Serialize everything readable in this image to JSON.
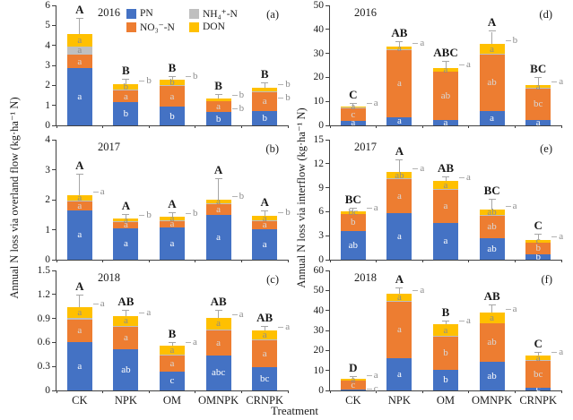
{
  "figure": {
    "x_title": "Treatment",
    "left_ylabel": "Annual N loss via overland flow (kg·ha⁻¹ N)",
    "right_ylabel": "Annual N loss via interflow (kg·ha⁻¹ N)",
    "categories": [
      "CK",
      "NPK",
      "OM",
      "OMNPK",
      "CRNPK"
    ],
    "colors": {
      "pn": "#4472C4",
      "no3": "#ED7D31",
      "nh4": "#BFBFBF",
      "don": "#FFC000"
    },
    "label_colors": {
      "pn": "#ffffff",
      "no3": "#d9d9d9",
      "nh4": "#8c8c8c",
      "don": "#8c8c8c"
    },
    "legend": [
      {
        "key": "pn",
        "label": "PN",
        "color": "#4472C4"
      },
      {
        "key": "nh4",
        "label": "NH₄⁺-N",
        "color": "#BFBFBF"
      },
      {
        "key": "no3",
        "label": "NO₃⁻-N",
        "color": "#ED7D31"
      },
      {
        "key": "don",
        "label": "DON",
        "color": "#FFC000"
      }
    ]
  },
  "chart_data": [
    {
      "type": "bar",
      "stacked": true,
      "id": "a",
      "panel_label": "(a)",
      "year": "2016",
      "side": "overland flow",
      "ylim": [
        0,
        6
      ],
      "ytick_labels": [
        "0",
        "1",
        "2",
        "3",
        "4",
        "5",
        "6"
      ],
      "bars": [
        {
          "treatment": "CK",
          "pn": 2.85,
          "no3": 0.7,
          "nh4": 0.4,
          "don": 0.6,
          "error": 0.8,
          "sig": "A",
          "pn_label": "a",
          "no3_label": "a",
          "nh4_label": "a",
          "don_label": "a",
          "callouts": []
        },
        {
          "treatment": "NPK",
          "pn": 1.15,
          "no3": 0.6,
          "nh4": 0.04,
          "don": 0.26,
          "error": 0.25,
          "sig": "B",
          "pn_label": "b",
          "no3_label": "a",
          "nh4_label": "",
          "don_label": "b",
          "callouts": [
            "b"
          ]
        },
        {
          "treatment": "OM",
          "pn": 0.92,
          "no3": 1.05,
          "nh4": 0.04,
          "don": 0.27,
          "error": 0.14,
          "sig": "B",
          "pn_label": "b",
          "no3_label": "a",
          "nh4_label": "",
          "don_label": "b",
          "callouts": [
            "b"
          ]
        },
        {
          "treatment": "OMNPK",
          "pn": 0.66,
          "no3": 0.54,
          "nh4": 0.03,
          "don": 0.13,
          "error": 0.15,
          "sig": "B",
          "pn_label": "b",
          "no3_label": "a",
          "nh4_label": "",
          "don_label": "",
          "callouts": [
            "b",
            "b"
          ]
        },
        {
          "treatment": "CRNPK",
          "pn": 0.72,
          "no3": 0.95,
          "nh4": 0.03,
          "don": 0.2,
          "error": 0.2,
          "sig": "B",
          "pn_label": "b",
          "no3_label": "a",
          "nh4_label": "",
          "don_label": "",
          "callouts": [
            "b",
            "b"
          ]
        }
      ]
    },
    {
      "type": "bar",
      "stacked": true,
      "id": "b",
      "panel_label": "(b)",
      "year": "2017",
      "side": "overland flow",
      "ylim": [
        0,
        4
      ],
      "ytick_labels": [
        "0",
        "1",
        "2",
        "3",
        "4"
      ],
      "bars": [
        {
          "treatment": "CK",
          "pn": 1.65,
          "no3": 0.3,
          "nh4": 0.03,
          "don": 0.17,
          "error": 0.7,
          "sig": "A",
          "pn_label": "a",
          "no3_label": "a",
          "nh4_label": "",
          "don_label": "a",
          "callouts": [
            "a"
          ]
        },
        {
          "treatment": "NPK",
          "pn": 1.05,
          "no3": 0.2,
          "nh4": 0.02,
          "don": 0.11,
          "error": 0.12,
          "sig": "A",
          "pn_label": "a",
          "no3_label": "a",
          "nh4_label": "",
          "don_label": "a",
          "callouts": [
            "b"
          ]
        },
        {
          "treatment": "OM",
          "pn": 1.08,
          "no3": 0.22,
          "nh4": 0.02,
          "don": 0.11,
          "error": 0.12,
          "sig": "A",
          "pn_label": "a",
          "no3_label": "a",
          "nh4_label": "",
          "don_label": "a",
          "callouts": [
            "b"
          ]
        },
        {
          "treatment": "OMNPK",
          "pn": 1.5,
          "no3": 0.35,
          "nh4": 0.02,
          "don": 0.13,
          "error": 0.7,
          "sig": "A",
          "pn_label": "a",
          "no3_label": "a",
          "nh4_label": "",
          "don_label": "a",
          "callouts": [
            "b"
          ]
        },
        {
          "treatment": "CRNPK",
          "pn": 1.02,
          "no3": 0.28,
          "nh4": 0.02,
          "don": 0.13,
          "error": 0.15,
          "sig": "A",
          "pn_label": "a",
          "no3_label": "a",
          "nh4_label": "",
          "don_label": "a",
          "callouts": [
            "b"
          ]
        }
      ]
    },
    {
      "type": "bar",
      "stacked": true,
      "id": "c",
      "panel_label": "(c)",
      "year": "2018",
      "side": "overland flow",
      "ylim": [
        0,
        1.5
      ],
      "ytick_labels": [
        "0",
        "0.3",
        "0.6",
        "0.9",
        "1.2",
        "1.5"
      ],
      "bars": [
        {
          "treatment": "CK",
          "pn": 0.61,
          "no3": 0.28,
          "nh4": 0.02,
          "don": 0.13,
          "error": 0.15,
          "sig": "A",
          "pn_label": "a",
          "no3_label": "a",
          "nh4_label": "",
          "don_label": "a",
          "callouts": [
            "a"
          ]
        },
        {
          "treatment": "NPK",
          "pn": 0.52,
          "no3": 0.28,
          "nh4": 0.01,
          "don": 0.12,
          "error": 0.07,
          "sig": "AB",
          "pn_label": "ab",
          "no3_label": "a",
          "nh4_label": "",
          "don_label": "a",
          "callouts": [
            "a"
          ]
        },
        {
          "treatment": "OM",
          "pn": 0.24,
          "no3": 0.2,
          "nh4": 0.01,
          "don": 0.11,
          "error": 0.03,
          "sig": "B",
          "pn_label": "c",
          "no3_label": "a",
          "nh4_label": "",
          "don_label": "a",
          "callouts": [
            "a"
          ]
        },
        {
          "treatment": "OMNPK",
          "pn": 0.44,
          "no3": 0.31,
          "nh4": 0.01,
          "don": 0.15,
          "error": 0.09,
          "sig": "AB",
          "pn_label": "abc",
          "no3_label": "a",
          "nh4_label": "",
          "don_label": "a",
          "callouts": [
            "a"
          ]
        },
        {
          "treatment": "CRNPK",
          "pn": 0.29,
          "no3": 0.34,
          "nh4": 0.01,
          "don": 0.11,
          "error": 0.04,
          "sig": "AB",
          "pn_label": "bc",
          "no3_label": "a",
          "nh4_label": "",
          "don_label": "a",
          "callouts": [
            "a"
          ]
        }
      ]
    },
    {
      "type": "bar",
      "stacked": true,
      "id": "d",
      "panel_label": "(d)",
      "year": "2016",
      "side": "interflow",
      "ylim": [
        0,
        50
      ],
      "ytick_labels": [
        "0",
        "10",
        "20",
        "30",
        "40",
        "50"
      ],
      "bars": [
        {
          "treatment": "CK",
          "pn": 2.0,
          "no3": 5.2,
          "nh4": 0.1,
          "don": 0.7,
          "error": 1.0,
          "sig": "C",
          "pn_label": "a",
          "no3_label": "c",
          "nh4_label": "",
          "don_label": "a",
          "callouts": [
            "a"
          ]
        },
        {
          "treatment": "NPK",
          "pn": 3.5,
          "no3": 28.0,
          "nh4": 0.1,
          "don": 1.1,
          "error": 2.0,
          "sig": "AB",
          "pn_label": "a",
          "no3_label": "a",
          "nh4_label": "",
          "don_label": "a",
          "callouts": [
            "a"
          ]
        },
        {
          "treatment": "OM",
          "pn": 2.2,
          "no3": 20.2,
          "nh4": 0.1,
          "don": 1.5,
          "error": 2.5,
          "sig": "ABC",
          "pn_label": "a",
          "no3_label": "ab",
          "nh4_label": "",
          "don_label": "a",
          "callouts": [
            "a"
          ]
        },
        {
          "treatment": "OMNPK",
          "pn": 6.0,
          "no3": 23.5,
          "nh4": 0.2,
          "don": 4.1,
          "error": 5.2,
          "sig": "A",
          "pn_label": "a",
          "no3_label": "ab",
          "nh4_label": "",
          "don_label": "a",
          "callouts": [
            "b"
          ]
        },
        {
          "treatment": "CRNPK",
          "pn": 2.2,
          "no3": 13.2,
          "nh4": 0.1,
          "don": 1.2,
          "error": 3.0,
          "sig": "BC",
          "pn_label": "a",
          "no3_label": "bc",
          "nh4_label": "",
          "don_label": "a",
          "callouts": [
            "a"
          ]
        }
      ]
    },
    {
      "type": "bar",
      "stacked": true,
      "id": "e",
      "panel_label": "(e)",
      "year": "2017",
      "side": "interflow",
      "ylim": [
        0,
        15
      ],
      "ytick_labels": [
        "0",
        "3",
        "6",
        "9",
        "12",
        "15"
      ],
      "bars": [
        {
          "treatment": "CK",
          "pn": 3.6,
          "no3": 2.1,
          "nh4": 0.05,
          "don": 0.3,
          "error": 0.35,
          "sig": "BC",
          "pn_label": "ab",
          "no3_label": "b",
          "nh4_label": "",
          "don_label": "bc",
          "callouts": [
            "a"
          ]
        },
        {
          "treatment": "NPK",
          "pn": 5.8,
          "no3": 4.3,
          "nh4": 0.05,
          "don": 0.8,
          "error": 1.5,
          "sig": "A",
          "pn_label": "a",
          "no3_label": "a",
          "nh4_label": "",
          "don_label": "ab",
          "callouts": [
            "a"
          ]
        },
        {
          "treatment": "OM",
          "pn": 4.6,
          "no3": 4.2,
          "nh4": 0.05,
          "don": 0.95,
          "error": 0.5,
          "sig": "AB",
          "pn_label": "a",
          "no3_label": "a",
          "nh4_label": "",
          "don_label": "a",
          "callouts": [
            "a"
          ]
        },
        {
          "treatment": "OMNPK",
          "pn": 2.7,
          "no3": 2.8,
          "nh4": 0.05,
          "don": 0.75,
          "error": 1.2,
          "sig": "BC",
          "pn_label": "ab",
          "no3_label": "ab",
          "nh4_label": "",
          "don_label": "ab",
          "callouts": [
            "a"
          ]
        },
        {
          "treatment": "CRNPK",
          "pn": 0.7,
          "no3": 1.4,
          "nh4": 0.05,
          "don": 0.3,
          "error": 0.65,
          "sig": "C",
          "pn_label": "b",
          "no3_label": "b",
          "nh4_label": "",
          "don_label": "c",
          "callouts": [
            "a"
          ]
        }
      ]
    },
    {
      "type": "bar",
      "stacked": true,
      "id": "f",
      "panel_label": "(f)",
      "year": "2018",
      "side": "interflow",
      "ylim": [
        0,
        60
      ],
      "ytick_labels": [
        "0",
        "10",
        "20",
        "30",
        "40",
        "50",
        "60"
      ],
      "bars": [
        {
          "treatment": "CK",
          "pn": 0.5,
          "no3": 4.5,
          "nh4": 0.1,
          "don": 0.8,
          "error": 0.8,
          "sig": "D",
          "pn_label": "",
          "no3_label": "c",
          "nh4_label": "",
          "don_label": "a",
          "callouts": [
            "a",
            "c"
          ]
        },
        {
          "treatment": "NPK",
          "pn": 16.0,
          "no3": 28.5,
          "nh4": 0.2,
          "don": 3.8,
          "error": 2.5,
          "sig": "A",
          "pn_label": "a",
          "no3_label": "a",
          "nh4_label": "",
          "don_label": "a",
          "callouts": [
            "a"
          ]
        },
        {
          "treatment": "OM",
          "pn": 10.5,
          "no3": 16.5,
          "nh4": 0.2,
          "don": 5.8,
          "error": 1.5,
          "sig": "B",
          "pn_label": "b",
          "no3_label": "b",
          "nh4_label": "",
          "don_label": "a",
          "callouts": [
            "a"
          ]
        },
        {
          "treatment": "OMNPK",
          "pn": 14.5,
          "no3": 19.0,
          "nh4": 0.2,
          "don": 5.2,
          "error": 3.5,
          "sig": "AB",
          "pn_label": "ab",
          "no3_label": "ab",
          "nh4_label": "",
          "don_label": "a",
          "callouts": [
            "a"
          ]
        },
        {
          "treatment": "CRNPK",
          "pn": 1.5,
          "no3": 13.5,
          "nh4": 0.1,
          "don": 2.4,
          "error": 1.5,
          "sig": "C",
          "pn_label": "c",
          "no3_label": "bc",
          "nh4_label": "",
          "don_label": "a",
          "callouts": [
            "a"
          ]
        }
      ]
    }
  ]
}
